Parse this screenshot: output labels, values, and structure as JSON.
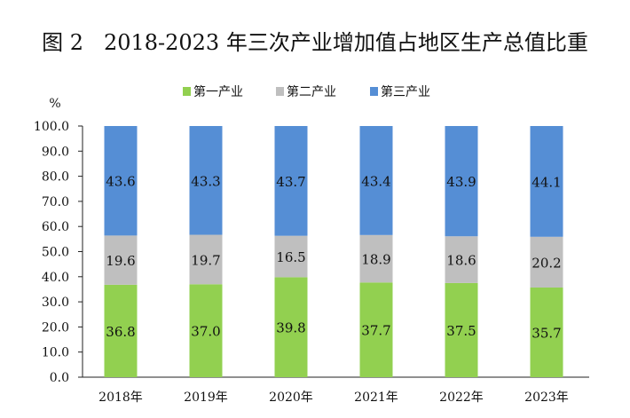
{
  "chart_data": {
    "type": "bar",
    "stacked": true,
    "title": "图 2   2018-2023 年三次产业增加值占地区生产总值比重",
    "ylabel": "%",
    "xlabel": "",
    "ylim": [
      0,
      100
    ],
    "yticks": [
      "0.0",
      "10.0",
      "20.0",
      "30.0",
      "40.0",
      "50.0",
      "60.0",
      "70.0",
      "80.0",
      "90.0",
      "100.0"
    ],
    "categories": [
      "2018年",
      "2019年",
      "2020年",
      "2021年",
      "2022年",
      "2023年"
    ],
    "legend_position": "top",
    "grid": false,
    "series": [
      {
        "name": "第一产业",
        "color": "#92d050",
        "values": [
          36.8,
          37.0,
          39.8,
          37.7,
          37.5,
          35.7
        ],
        "labels": [
          "36.8",
          "37.0",
          "39.8",
          "37.7",
          "37.5",
          "35.7"
        ]
      },
      {
        "name": "第二产业",
        "color": "#bfbfbf",
        "values": [
          19.6,
          19.7,
          16.5,
          18.9,
          18.6,
          20.2
        ],
        "labels": [
          "19.6",
          "19.7",
          "16.5",
          "18.9",
          "18.6",
          "20.2"
        ]
      },
      {
        "name": "第三产业",
        "color": "#558ed5",
        "values": [
          43.6,
          43.3,
          43.7,
          43.4,
          43.9,
          44.1
        ],
        "labels": [
          "43.6",
          "43.3",
          "43.7",
          "43.4",
          "43.9",
          "44.1"
        ]
      }
    ]
  }
}
